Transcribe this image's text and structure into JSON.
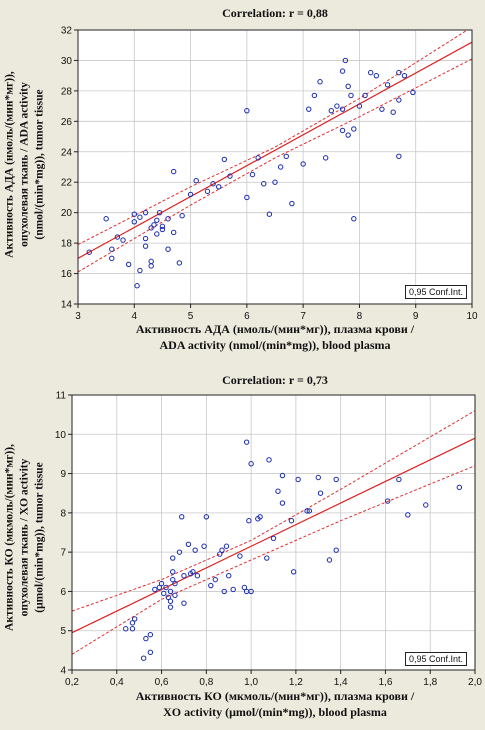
{
  "chart_data": [
    {
      "type": "scatter",
      "title": "Correlation: r = 0,88",
      "xlabel_line1": "Активность АДА (нмоль/(мин*мг)), плазма крови /",
      "xlabel_line2": "ADA activity (nmol/(min*mg)), blood plasma",
      "ylabel_line1": "Активность АДА (нмоль/(мин*мг)),",
      "ylabel_line2": "опухолевая ткань / ADA activity",
      "ylabel_line3": "(nmol/(min*mg)), tumor tissue",
      "legend": "0,95 Conf.Int.",
      "legend_position": "bottom-right",
      "xlim": [
        3,
        10
      ],
      "ylim": [
        14,
        32
      ],
      "xticks": [
        3,
        4,
        5,
        6,
        7,
        8,
        9,
        10
      ],
      "yticks": [
        14,
        16,
        18,
        20,
        22,
        24,
        26,
        28,
        30,
        32
      ],
      "xtick_labels": [
        "3",
        "4",
        "5",
        "6",
        "7",
        "8",
        "9",
        "10"
      ],
      "ytick_labels": [
        "14",
        "16",
        "18",
        "20",
        "22",
        "24",
        "26",
        "28",
        "30",
        "32"
      ],
      "grid": true,
      "regression": [
        [
          3,
          17.0
        ],
        [
          10,
          31.2
        ]
      ],
      "ci_upper": [
        [
          3,
          17.9
        ],
        [
          5,
          21.7
        ],
        [
          6.5,
          24.3
        ],
        [
          8,
          27.5
        ],
        [
          10,
          32.2
        ]
      ],
      "ci_lower": [
        [
          3,
          16.1
        ],
        [
          5,
          20.5
        ],
        [
          6.5,
          23.6
        ],
        [
          8,
          26.3
        ],
        [
          10,
          30.1
        ]
      ],
      "points": [
        [
          3.2,
          17.4
        ],
        [
          3.5,
          19.6
        ],
        [
          3.6,
          17.0
        ],
        [
          3.6,
          17.6
        ],
        [
          3.7,
          18.4
        ],
        [
          3.8,
          18.2
        ],
        [
          3.9,
          16.6
        ],
        [
          4.0,
          19.9
        ],
        [
          4.0,
          19.4
        ],
        [
          4.05,
          15.2
        ],
        [
          4.1,
          16.2
        ],
        [
          4.1,
          19.7
        ],
        [
          4.2,
          20.0
        ],
        [
          4.2,
          17.8
        ],
        [
          4.2,
          18.3
        ],
        [
          4.3,
          19.0
        ],
        [
          4.3,
          16.5
        ],
        [
          4.3,
          16.8
        ],
        [
          4.35,
          19.2
        ],
        [
          4.4,
          19.5
        ],
        [
          4.4,
          18.6
        ],
        [
          4.45,
          20.0
        ],
        [
          4.5,
          18.9
        ],
        [
          4.5,
          19.1
        ],
        [
          4.6,
          19.6
        ],
        [
          4.6,
          17.6
        ],
        [
          4.7,
          18.7
        ],
        [
          4.7,
          22.7
        ],
        [
          4.8,
          16.7
        ],
        [
          4.85,
          19.8
        ],
        [
          5.0,
          21.2
        ],
        [
          5.1,
          22.1
        ],
        [
          5.3,
          21.4
        ],
        [
          5.4,
          21.9
        ],
        [
          5.5,
          21.7
        ],
        [
          5.6,
          23.5
        ],
        [
          5.7,
          22.4
        ],
        [
          6.0,
          26.7
        ],
        [
          6.0,
          21.0
        ],
        [
          6.1,
          22.5
        ],
        [
          6.2,
          23.6
        ],
        [
          6.3,
          21.9
        ],
        [
          6.4,
          19.9
        ],
        [
          6.5,
          22.0
        ],
        [
          6.6,
          23.0
        ],
        [
          6.7,
          23.7
        ],
        [
          6.8,
          20.6
        ],
        [
          7.0,
          23.2
        ],
        [
          7.1,
          26.8
        ],
        [
          7.2,
          27.7
        ],
        [
          7.3,
          28.6
        ],
        [
          7.4,
          23.6
        ],
        [
          7.5,
          26.7
        ],
        [
          7.6,
          27.0
        ],
        [
          7.7,
          25.4
        ],
        [
          7.7,
          26.8
        ],
        [
          7.7,
          29.3
        ],
        [
          7.75,
          30.0
        ],
        [
          7.8,
          28.3
        ],
        [
          7.8,
          25.1
        ],
        [
          7.85,
          27.7
        ],
        [
          7.9,
          25.5
        ],
        [
          7.9,
          19.6
        ],
        [
          8.0,
          27.0
        ],
        [
          8.1,
          27.7
        ],
        [
          8.2,
          29.2
        ],
        [
          8.3,
          29.0
        ],
        [
          8.4,
          26.8
        ],
        [
          8.5,
          28.4
        ],
        [
          8.6,
          26.6
        ],
        [
          8.7,
          27.4
        ],
        [
          8.7,
          29.2
        ],
        [
          8.7,
          23.7
        ],
        [
          8.8,
          29.0
        ],
        [
          8.95,
          27.9
        ]
      ]
    },
    {
      "type": "scatter",
      "title": "Correlation: r = 0,73",
      "xlabel_line1": "Активность КО (мкмоль/(мин*мг)), плазма крови /",
      "xlabel_line2": "XO activity (μmol/(min*mg)), blood plasma",
      "ylabel_line1": "Активность КО (мкмоль/(мин*мг)),",
      "ylabel_line2": "опухолевая ткань / XO activity",
      "ylabel_line3": "(μmol/(min*mg)), tumor tissue",
      "legend": "0,95 Conf.Int.",
      "legend_position": "bottom-right",
      "xlim": [
        0.2,
        2.0
      ],
      "ylim": [
        4,
        11
      ],
      "xticks": [
        0.2,
        0.4,
        0.6,
        0.8,
        1.0,
        1.2,
        1.4,
        1.6,
        1.8,
        2.0
      ],
      "yticks": [
        4,
        5,
        6,
        7,
        8,
        9,
        10,
        11
      ],
      "xtick_labels": [
        "0,2",
        "0,4",
        "0,6",
        "0,8",
        "1,0",
        "1,2",
        "1,4",
        "1,6",
        "1,8",
        "2,0"
      ],
      "ytick_labels": [
        "4",
        "5",
        "6",
        "7",
        "8",
        "9",
        "10",
        "11"
      ],
      "grid": true,
      "regression": [
        [
          0.2,
          4.95
        ],
        [
          2.0,
          9.9
        ]
      ],
      "ci_upper": [
        [
          0.2,
          5.5
        ],
        [
          0.6,
          6.3
        ],
        [
          1.0,
          7.3
        ],
        [
          1.4,
          8.6
        ],
        [
          2.0,
          10.6
        ]
      ],
      "ci_lower": [
        [
          0.2,
          4.4
        ],
        [
          0.6,
          5.8
        ],
        [
          1.0,
          6.8
        ],
        [
          1.4,
          7.8
        ],
        [
          2.0,
          9.2
        ]
      ],
      "points": [
        [
          0.44,
          5.05
        ],
        [
          0.47,
          5.05
        ],
        [
          0.47,
          5.2
        ],
        [
          0.48,
          5.3
        ],
        [
          0.52,
          4.3
        ],
        [
          0.53,
          4.8
        ],
        [
          0.55,
          4.9
        ],
        [
          0.55,
          4.45
        ],
        [
          0.57,
          6.05
        ],
        [
          0.59,
          6.1
        ],
        [
          0.6,
          6.2
        ],
        [
          0.61,
          5.95
        ],
        [
          0.62,
          6.1
        ],
        [
          0.63,
          5.85
        ],
        [
          0.64,
          5.6
        ],
        [
          0.64,
          5.75
        ],
        [
          0.64,
          6.0
        ],
        [
          0.65,
          6.3
        ],
        [
          0.65,
          6.5
        ],
        [
          0.65,
          6.85
        ],
        [
          0.66,
          6.2
        ],
        [
          0.66,
          5.9
        ],
        [
          0.68,
          7.0
        ],
        [
          0.69,
          7.9
        ],
        [
          0.7,
          6.4
        ],
        [
          0.7,
          5.7
        ],
        [
          0.72,
          7.2
        ],
        [
          0.73,
          6.45
        ],
        [
          0.74,
          6.5
        ],
        [
          0.75,
          7.05
        ],
        [
          0.76,
          6.4
        ],
        [
          0.79,
          7.15
        ],
        [
          0.8,
          7.9
        ],
        [
          0.82,
          6.15
        ],
        [
          0.84,
          6.3
        ],
        [
          0.86,
          6.95
        ],
        [
          0.87,
          7.05
        ],
        [
          0.88,
          6.0
        ],
        [
          0.89,
          7.15
        ],
        [
          0.9,
          6.4
        ],
        [
          0.92,
          6.05
        ],
        [
          0.95,
          6.9
        ],
        [
          0.97,
          6.1
        ],
        [
          0.98,
          6.0
        ],
        [
          0.98,
          9.8
        ],
        [
          0.99,
          7.8
        ],
        [
          1.0,
          6.0
        ],
        [
          1.0,
          9.25
        ],
        [
          1.03,
          7.85
        ],
        [
          1.04,
          7.9
        ],
        [
          1.07,
          6.85
        ],
        [
          1.08,
          9.35
        ],
        [
          1.1,
          7.35
        ],
        [
          1.12,
          8.55
        ],
        [
          1.14,
          8.95
        ],
        [
          1.14,
          8.25
        ],
        [
          1.18,
          7.8
        ],
        [
          1.19,
          6.5
        ],
        [
          1.21,
          8.85
        ],
        [
          1.25,
          8.05
        ],
        [
          1.26,
          8.05
        ],
        [
          1.3,
          8.9
        ],
        [
          1.31,
          8.5
        ],
        [
          1.35,
          6.8
        ],
        [
          1.38,
          8.85
        ],
        [
          1.38,
          7.05
        ],
        [
          1.61,
          8.3
        ],
        [
          1.66,
          8.85
        ],
        [
          1.7,
          7.95
        ],
        [
          1.78,
          8.2
        ],
        [
          1.93,
          8.65
        ]
      ]
    }
  ]
}
